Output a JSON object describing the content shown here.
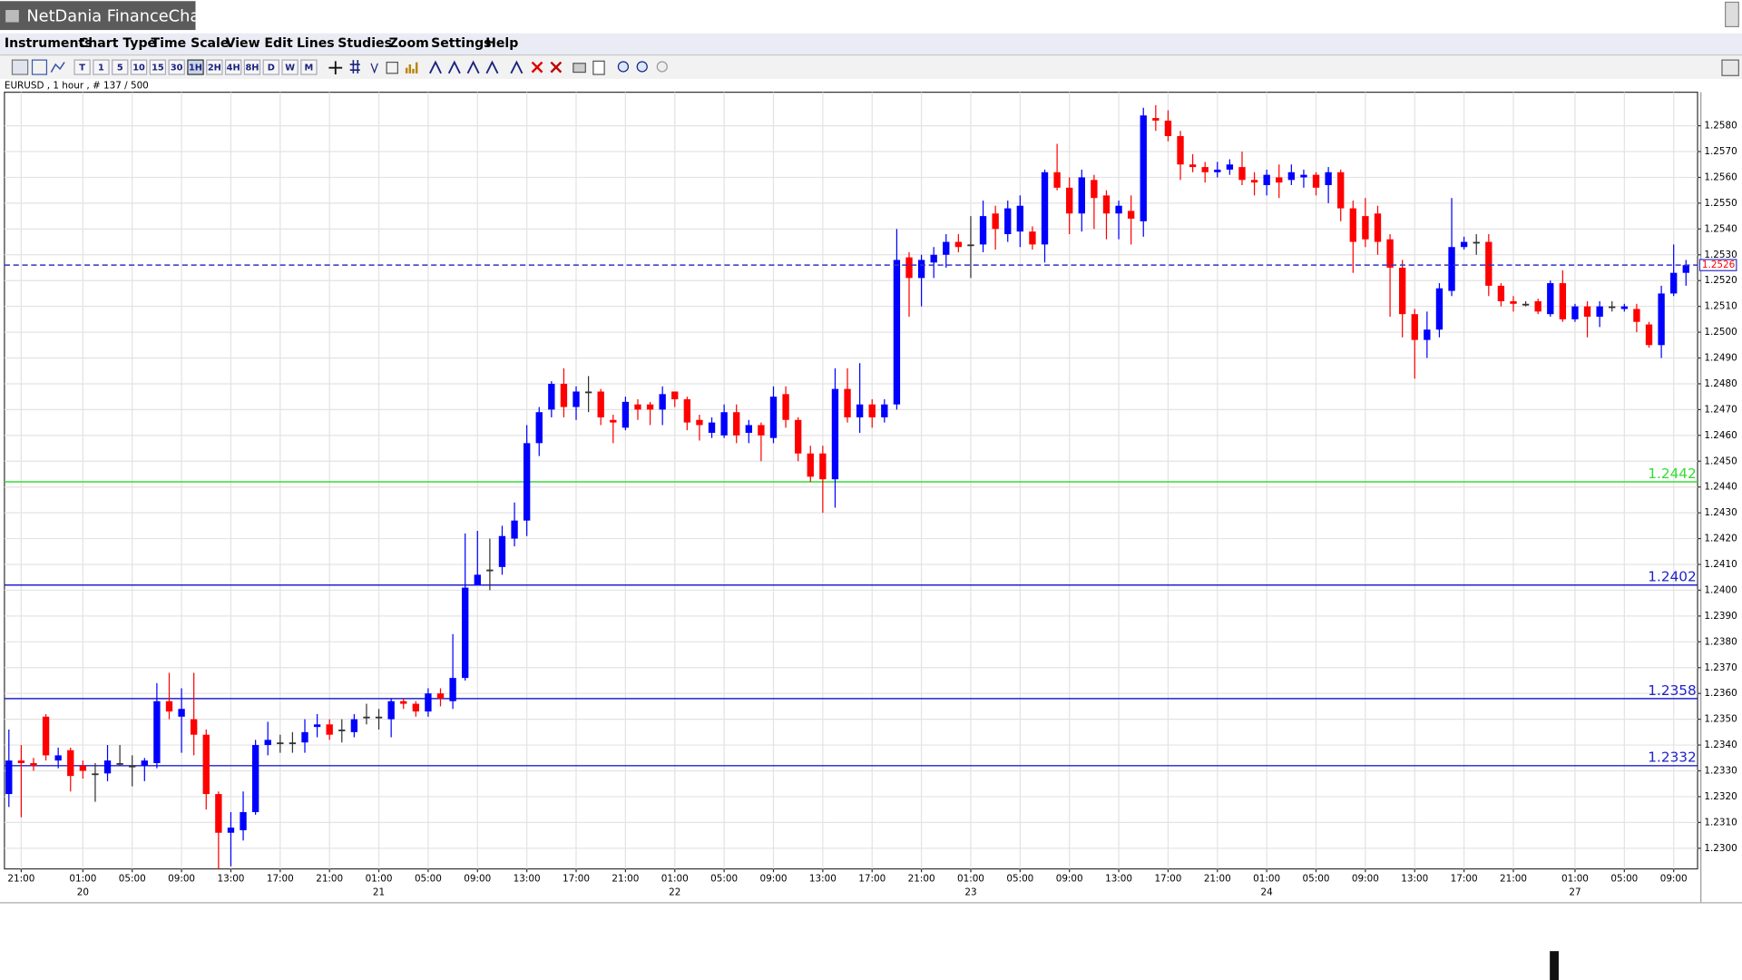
{
  "app": {
    "title": "NetDania FinanceChart",
    "menu": [
      "Instruments",
      "Chart Type",
      "Time Scale",
      "View",
      "Edit",
      "Lines",
      "Studies",
      "Zoom",
      "Settings",
      "Help"
    ],
    "toolbar": [
      "T",
      "1",
      "5",
      "10",
      "15",
      "30",
      "1H",
      "2H",
      "4H",
      "8H",
      "D",
      "W",
      "M"
    ],
    "info": "EURUSD , 1 hour , # 137 / 500"
  },
  "chart_data": {
    "type": "candlestick",
    "up_color": "#0000ff",
    "down_color": "#ff0000",
    "grid": true,
    "ylim": [
      1.2292,
      1.2593
    ],
    "yticks": [
      {
        "value": 1.23,
        "label": "1.2300"
      },
      {
        "value": 1.231,
        "label": "1.2310"
      },
      {
        "value": 1.232,
        "label": "1.2320"
      },
      {
        "value": 1.233,
        "label": "1.2330"
      },
      {
        "value": 1.234,
        "label": "1.2340"
      },
      {
        "value": 1.235,
        "label": "1.2350"
      },
      {
        "value": 1.236,
        "label": "1.2360"
      },
      {
        "value": 1.237,
        "label": "1.2370"
      },
      {
        "value": 1.238,
        "label": "1.2380"
      },
      {
        "value": 1.239,
        "label": "1.2390"
      },
      {
        "value": 1.24,
        "label": "1.2400"
      },
      {
        "value": 1.241,
        "label": "1.2410"
      },
      {
        "value": 1.242,
        "label": "1.2420"
      },
      {
        "value": 1.243,
        "label": "1.2430"
      },
      {
        "value": 1.244,
        "label": "1.2440"
      },
      {
        "value": 1.245,
        "label": "1.2450"
      },
      {
        "value": 1.246,
        "label": "1.2460"
      },
      {
        "value": 1.247,
        "label": "1.2470"
      },
      {
        "value": 1.248,
        "label": "1.2480"
      },
      {
        "value": 1.249,
        "label": "1.2490"
      },
      {
        "value": 1.25,
        "label": "1.2500"
      },
      {
        "value": 1.251,
        "label": "1.2510"
      },
      {
        "value": 1.252,
        "label": "1.2520"
      },
      {
        "value": 1.253,
        "label": "1.2530"
      },
      {
        "value": 1.254,
        "label": "1.2540"
      },
      {
        "value": 1.255,
        "label": "1.2550"
      },
      {
        "value": 1.256,
        "label": "1.2560"
      },
      {
        "value": 1.257,
        "label": "1.2570"
      },
      {
        "value": 1.258,
        "label": "1.2580"
      }
    ],
    "categories": [
      null,
      "21:00",
      null,
      null,
      null,
      null,
      "01:00",
      null,
      null,
      null,
      "05:00",
      null,
      null,
      null,
      "09:00",
      null,
      null,
      null,
      "13:00",
      null,
      null,
      null,
      "17:00",
      null,
      null,
      null,
      "21:00",
      null,
      null,
      null,
      "01:00",
      null,
      null,
      null,
      "05:00",
      null,
      null,
      null,
      "09:00",
      null,
      null,
      null,
      "13:00",
      null,
      null,
      null,
      "17:00",
      null,
      null,
      null,
      "21:00",
      null,
      null,
      null,
      "01:00",
      null,
      null,
      null,
      "05:00",
      null,
      null,
      null,
      "09:00",
      null,
      null,
      null,
      "13:00",
      null,
      null,
      null,
      "17:00",
      null,
      null,
      null,
      "21:00",
      null,
      null,
      null,
      "01:00",
      null,
      null,
      null,
      "05:00",
      null,
      null,
      null,
      "09:00",
      null,
      null,
      null,
      "13:00",
      null,
      null,
      null,
      "17:00",
      null,
      null,
      null,
      "21:00",
      null,
      null,
      null,
      "01:00",
      null,
      null,
      null,
      "05:00",
      null,
      null,
      null,
      "09:00",
      null,
      null,
      null,
      "13:00",
      null,
      null,
      null,
      "17:00",
      null,
      null,
      null,
      "21:00",
      null,
      null,
      null,
      null,
      "01:00",
      null,
      null,
      null,
      "05:00",
      null,
      null,
      null,
      "09:00",
      null
    ],
    "dates": [
      null,
      null,
      null,
      null,
      null,
      null,
      "20",
      null,
      null,
      null,
      null,
      null,
      null,
      null,
      null,
      null,
      null,
      null,
      null,
      null,
      null,
      null,
      null,
      null,
      null,
      null,
      null,
      null,
      null,
      null,
      "21",
      null,
      null,
      null,
      null,
      null,
      null,
      null,
      null,
      null,
      null,
      null,
      null,
      null,
      null,
      null,
      null,
      null,
      null,
      null,
      null,
      null,
      null,
      null,
      "22",
      null,
      null,
      null,
      null,
      null,
      null,
      null,
      null,
      null,
      null,
      null,
      null,
      null,
      null,
      null,
      null,
      null,
      null,
      null,
      null,
      null,
      null,
      null,
      "23",
      null,
      null,
      null,
      null,
      null,
      null,
      null,
      null,
      null,
      null,
      null,
      null,
      null,
      null,
      null,
      null,
      null,
      null,
      null,
      null,
      null,
      null,
      null,
      "24",
      null,
      null,
      null,
      null,
      null,
      null,
      null,
      null,
      null,
      null,
      null,
      null,
      null,
      null,
      null,
      null,
      null,
      null,
      null,
      null,
      null,
      null,
      null,
      null,
      "27",
      null,
      null,
      null,
      null,
      null,
      null,
      null,
      null,
      null
    ],
    "open": [
      1.2321,
      1.2334,
      1.2333,
      1.2351,
      1.2334,
      1.2338,
      1.2332,
      1.2329,
      1.2329,
      1.2333,
      1.2332,
      1.2332,
      1.2333,
      1.2357,
      1.2351,
      1.235,
      1.2344,
      1.2321,
      1.2306,
      1.2307,
      1.2314,
      1.234,
      1.2341,
      1.2341,
      1.2341,
      1.2347,
      1.2348,
      1.2346,
      1.2345,
      1.2351,
      1.2351,
      1.235,
      1.2357,
      1.2356,
      1.2353,
      1.236,
      1.2357,
      1.2366,
      1.2402,
      1.2408,
      1.2409,
      1.242,
      1.2427,
      1.2457,
      1.247,
      1.248,
      1.2471,
      1.2477,
      1.2477,
      1.2466,
      1.2463,
      1.2472,
      1.2472,
      1.247,
      1.2477,
      1.2474,
      1.2466,
      1.2461,
      1.246,
      1.2469,
      1.2461,
      1.2464,
      1.2459,
      1.2476,
      1.2466,
      1.2453,
      1.2453,
      1.2443,
      1.2478,
      1.2467,
      1.2472,
      1.2467,
      1.2472,
      1.2529,
      1.2521,
      1.2527,
      1.253,
      1.2535,
      1.2534,
      1.2534,
      1.2546,
      1.2538,
      1.2539,
      1.2539,
      1.2534,
      1.2562,
      1.2556,
      1.2546,
      1.2559,
      1.2553,
      1.2546,
      1.2547,
      1.2543,
      1.2583,
      1.2582,
      1.2576,
      1.2565,
      1.2564,
      1.2562,
      1.2563,
      1.2564,
      1.2559,
      1.2557,
      1.256,
      1.2559,
      1.256,
      1.2561,
      1.2557,
      1.2562,
      1.2548,
      1.2545,
      1.2546,
      1.2536,
      1.2525,
      1.2507,
      1.2497,
      1.2501,
      1.2516,
      1.2533,
      1.2535,
      1.2535,
      1.2518,
      1.2512,
      1.2511,
      1.2512,
      1.2507,
      1.2519,
      1.2505,
      1.251,
      1.2506,
      1.251,
      1.2509,
      1.2509,
      1.2503,
      1.2495,
      1.2515,
      1.2523
    ],
    "high": [
      1.2346,
      1.234,
      1.2335,
      1.2352,
      1.2339,
      1.2339,
      1.2334,
      1.2333,
      1.234,
      1.234,
      1.2336,
      1.2335,
      1.2364,
      1.2368,
      1.2362,
      1.2368,
      1.2346,
      1.2322,
      1.2314,
      1.2322,
      1.2342,
      1.2349,
      1.2344,
      1.2345,
      1.235,
      1.2352,
      1.235,
      1.235,
      1.2352,
      1.2356,
      1.2354,
      1.2358,
      1.2358,
      1.2357,
      1.2362,
      1.2362,
      1.2383,
      1.2422,
      1.2423,
      1.242,
      1.2425,
      1.2434,
      1.2464,
      1.2471,
      1.2481,
      1.2486,
      1.2479,
      1.2483,
      1.2478,
      1.2468,
      1.2475,
      1.2474,
      1.2473,
      1.2479,
      1.2477,
      1.2475,
      1.2468,
      1.2467,
      1.2472,
      1.2472,
      1.2466,
      1.2465,
      1.2479,
      1.2479,
      1.2467,
      1.2456,
      1.2456,
      1.2486,
      1.2486,
      1.2488,
      1.2474,
      1.2474,
      1.254,
      1.2531,
      1.253,
      1.2533,
      1.2538,
      1.2538,
      1.2545,
      1.2551,
      1.2549,
      1.2551,
      1.2553,
      1.2541,
      1.2563,
      1.2573,
      1.256,
      1.2563,
      1.2561,
      1.2555,
      1.2551,
      1.2553,
      1.2587,
      1.2588,
      1.2586,
      1.2578,
      1.2569,
      1.2566,
      1.2566,
      1.2567,
      1.257,
      1.2562,
      1.2563,
      1.2565,
      1.2565,
      1.2563,
      1.2562,
      1.2564,
      1.2563,
      1.2551,
      1.2552,
      1.2549,
      1.2538,
      1.2528,
      1.2509,
      1.2508,
      1.2519,
      1.2552,
      1.2537,
      1.2538,
      1.2538,
      1.2519,
      1.2514,
      1.2512,
      1.2513,
      1.252,
      1.2524,
      1.2511,
      1.2512,
      1.2512,
      1.2512,
      1.2511,
      1.2511,
      1.2504,
      1.2518,
      1.2534,
      1.2528
    ],
    "low": [
      1.2316,
      1.2312,
      1.233,
      1.2334,
      1.2331,
      1.2322,
      1.2327,
      1.2318,
      1.2326,
      1.2332,
      1.2324,
      1.2326,
      1.2331,
      1.235,
      1.2337,
      1.2336,
      1.2315,
      1.2292,
      1.2293,
      1.2303,
      1.2313,
      1.2336,
      1.2337,
      1.2337,
      1.2337,
      1.2343,
      1.2342,
      1.2341,
      1.2343,
      1.2348,
      1.2346,
      1.2343,
      1.2354,
      1.2351,
      1.2351,
      1.2355,
      1.2354,
      1.2365,
      1.2402,
      1.24,
      1.2406,
      1.2417,
      1.2421,
      1.2452,
      1.2467,
      1.2467,
      1.2466,
      1.2469,
      1.2464,
      1.2457,
      1.2462,
      1.2466,
      1.2464,
      1.2464,
      1.2471,
      1.2462,
      1.2458,
      1.2459,
      1.2459,
      1.2457,
      1.2457,
      1.245,
      1.2457,
      1.2463,
      1.245,
      1.2442,
      1.243,
      1.2432,
      1.2465,
      1.2461,
      1.2463,
      1.2465,
      1.247,
      1.2506,
      1.251,
      1.2521,
      1.2525,
      1.2531,
      1.2521,
      1.2531,
      1.2532,
      1.2535,
      1.2533,
      1.2532,
      1.2527,
      1.2555,
      1.2538,
      1.2539,
      1.254,
      1.2536,
      1.2536,
      1.2534,
      1.2537,
      1.2578,
      1.2574,
      1.2559,
      1.2562,
      1.2558,
      1.256,
      1.2561,
      1.2557,
      1.2553,
      1.2553,
      1.2552,
      1.2557,
      1.2556,
      1.2553,
      1.255,
      1.2543,
      1.2523,
      1.2533,
      1.253,
      1.2506,
      1.2498,
      1.2482,
      1.249,
      1.2498,
      1.2514,
      1.2532,
      1.253,
      1.2514,
      1.251,
      1.2508,
      1.251,
      1.2507,
      1.2506,
      1.2504,
      1.2504,
      1.2498,
      1.2502,
      1.2508,
      1.2508,
      1.25,
      1.2494,
      1.249,
      1.2514,
      1.2518
    ],
    "close": [
      1.2334,
      1.2333,
      1.2332,
      1.2336,
      1.2336,
      1.2328,
      1.233,
      1.2329,
      1.2334,
      1.2333,
      1.2332,
      1.2334,
      1.2357,
      1.2353,
      1.2354,
      1.2344,
      1.2321,
      1.2306,
      1.2308,
      1.2314,
      1.234,
      1.2342,
      1.2341,
      1.2341,
      1.2345,
      1.2348,
      1.2344,
      1.2346,
      1.235,
      1.2351,
      1.2351,
      1.2357,
      1.2356,
      1.2353,
      1.236,
      1.2358,
      1.2366,
      1.2401,
      1.2406,
      1.2408,
      1.2421,
      1.2427,
      1.2457,
      1.2469,
      1.248,
      1.2471,
      1.2477,
      1.2477,
      1.2467,
      1.2465,
      1.2473,
      1.247,
      1.247,
      1.2476,
      1.2474,
      1.2465,
      1.2464,
      1.2465,
      1.2469,
      1.246,
      1.2464,
      1.246,
      1.2475,
      1.2466,
      1.2453,
      1.2444,
      1.2443,
      1.2478,
      1.2467,
      1.2472,
      1.2467,
      1.2472,
      1.2528,
      1.2521,
      1.2528,
      1.253,
      1.2535,
      1.2533,
      1.2534,
      1.2545,
      1.254,
      1.2548,
      1.2549,
      1.2534,
      1.2562,
      1.2556,
      1.2546,
      1.256,
      1.2552,
      1.2546,
      1.2549,
      1.2544,
      1.2584,
      1.2582,
      1.2576,
      1.2565,
      1.2564,
      1.2562,
      1.2563,
      1.2565,
      1.2559,
      1.2558,
      1.2561,
      1.2558,
      1.2562,
      1.2561,
      1.2556,
      1.2562,
      1.2548,
      1.2535,
      1.2536,
      1.2535,
      1.2525,
      1.2507,
      1.2497,
      1.2501,
      1.2517,
      1.2533,
      1.2535,
      1.2535,
      1.2518,
      1.2512,
      1.2511,
      1.2511,
      1.2508,
      1.2519,
      1.2505,
      1.251,
      1.2506,
      1.251,
      1.251,
      1.251,
      1.2504,
      1.2495,
      1.2515,
      1.2523,
      1.2526
    ],
    "levels": [
      {
        "value": 1.2442,
        "color": "#33dd33"
      },
      {
        "value": 1.2402,
        "color": "#2222cc"
      },
      {
        "value": 1.2358,
        "color": "#2222cc"
      },
      {
        "value": 1.2332,
        "color": "#2222cc"
      }
    ],
    "last_price": {
      "value": 1.2526,
      "color": "#3333cc",
      "label_color": "#ff0000"
    }
  }
}
